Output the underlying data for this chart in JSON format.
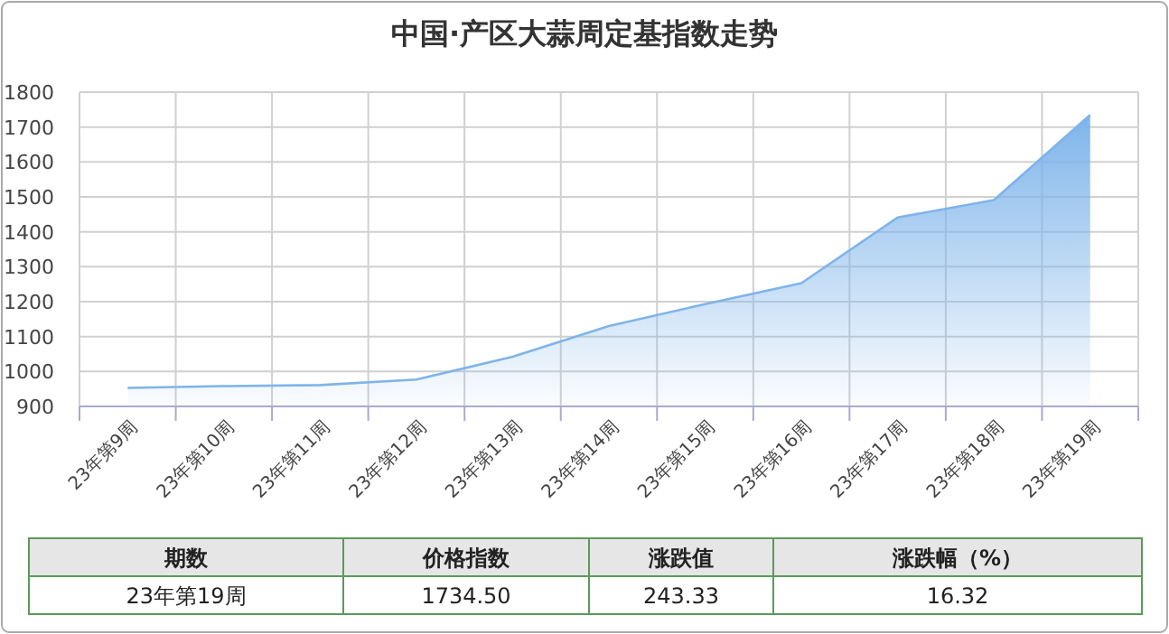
{
  "chart_data": {
    "type": "area",
    "title": "中国·产区大蒜周定基指数走势",
    "categories": [
      "23年第9周",
      "23年第10周",
      "23年第11周",
      "23年第12周",
      "23年第13周",
      "23年第14周",
      "23年第15周",
      "23年第16周",
      "23年第17周",
      "23年第18周",
      "23年第19周"
    ],
    "values": [
      953,
      958,
      961,
      977,
      1042,
      1130,
      1193,
      1253,
      1441,
      1491,
      1734.5
    ],
    "color": "#7eb4ea",
    "ylim": [
      900,
      1800
    ],
    "yticks": [
      900,
      1000,
      1100,
      1200,
      1300,
      1400,
      1500,
      1600,
      1700,
      1800
    ],
    "grid": true,
    "annotations": [
      "期数",
      "价格指数",
      "涨跌值",
      "涨跌幅（%）",
      "23年第19周",
      "1734.50",
      "243.33",
      "16.32"
    ]
  }
}
